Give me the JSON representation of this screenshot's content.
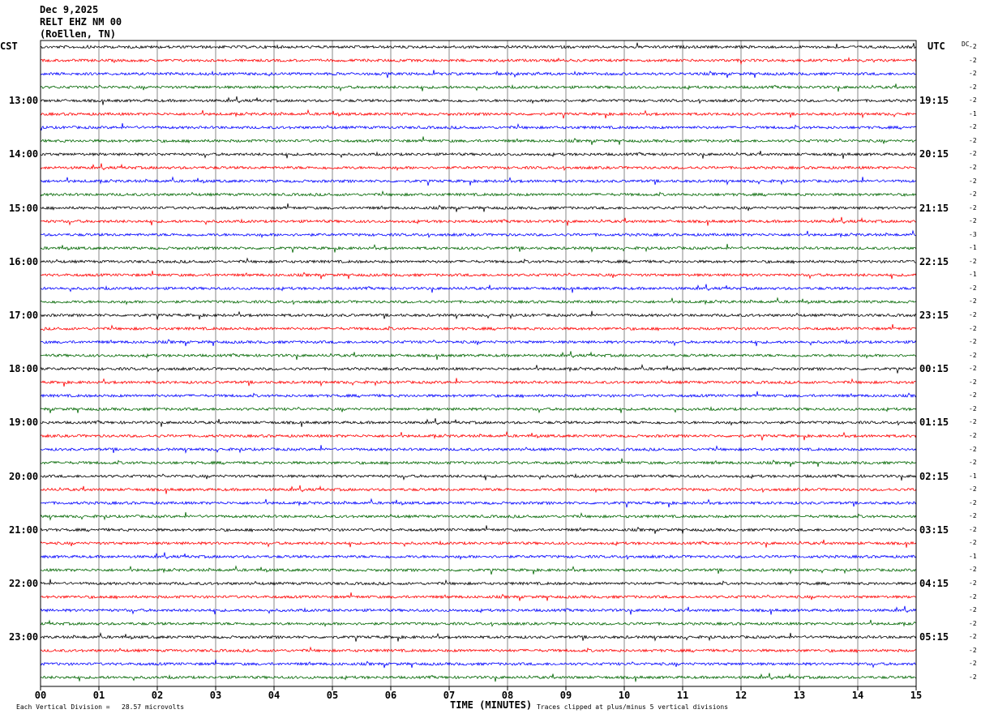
{
  "header": {
    "date": "Dec 9,2025",
    "station": "RELT EHZ NM 00",
    "location": "(RoEllen, TN)"
  },
  "left_zone": "CST",
  "right_zone": "UTC",
  "dc_label": "DC",
  "footer": {
    "scale_note": "Each Vertical Division =   28.57 microvolts",
    "clip_note": "Traces clipped at plus/minus 5 vertical divisions"
  },
  "chart_data": {
    "type": "line",
    "title": "",
    "xlabel": "TIME (MINUTES)",
    "x_range": [
      0,
      15
    ],
    "x_ticks": [
      "00",
      "01",
      "02",
      "03",
      "04",
      "05",
      "06",
      "07",
      "08",
      "09",
      "10",
      "11",
      "12",
      "13",
      "14",
      "15"
    ],
    "trace_count": 48,
    "trace_colors": [
      "#000000",
      "#ff0000",
      "#0000ff",
      "#006600"
    ],
    "grid": "vertical lines at each minute",
    "left_hour_labels": [
      "13:00",
      "14:00",
      "15:00",
      "16:00",
      "17:00",
      "18:00",
      "19:00",
      "20:00",
      "21:00",
      "22:00",
      "23:00"
    ],
    "right_hour_labels": [
      "19:15",
      "20:15",
      "21:15",
      "22:15",
      "23:15",
      "00:15",
      "01:15",
      "02:15",
      "03:15",
      "04:15",
      "05:15"
    ],
    "dc_offsets": [
      "-2",
      "-2",
      "-2",
      "-2",
      "-2",
      "-1",
      "-2",
      "-2",
      "-2",
      "-2",
      "-2",
      "-2",
      "-2",
      "-2",
      "-3",
      "-1",
      "-2",
      "-1",
      "-2",
      "-2",
      "-2",
      "-2",
      "-2",
      "-2",
      "-2",
      "-2",
      "-2",
      "-2",
      "-2",
      "-2",
      "-2",
      "-2",
      "-1",
      "-2",
      "-2",
      "-2",
      "-2",
      "-2",
      "-1",
      "-2",
      "-2",
      "-2",
      "-2",
      "-2",
      "-2",
      "-2",
      "-2",
      "-2"
    ]
  }
}
